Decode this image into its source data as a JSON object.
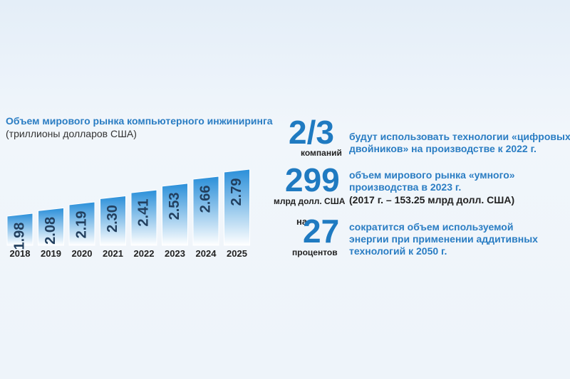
{
  "chart_data": {
    "type": "bar",
    "title": "Объем мирового рынка компьютерного инжиниринга",
    "subtitle": "(триллионы долларов США)",
    "categories": [
      "2018",
      "2019",
      "2020",
      "2021",
      "2022",
      "2023",
      "2024",
      "2025"
    ],
    "values": [
      1.98,
      2.08,
      2.19,
      2.3,
      2.41,
      2.53,
      2.66,
      2.79
    ],
    "value_labels": [
      "1.98",
      "2.08",
      "2.19",
      "2.30",
      "2.41",
      "2.53",
      "2.66",
      "2.79"
    ],
    "xlabel": "",
    "ylabel": "",
    "ylim": [
      0,
      2.8
    ],
    "grid": false,
    "bar_color_top": "#2a8fd9",
    "bar_color_bottom": "#ffffff"
  },
  "stats": [
    {
      "number": "2/3",
      "unit": "компаний",
      "desc_lines": [
        "будут использовать технологии «цифровых",
        "двойников» на производстве к 2022 г."
      ]
    },
    {
      "number": "299",
      "unit": "млрд долл. США",
      "desc_lines": [
        "объем мирового рынка «умного»",
        "производства в 2023 г."
      ],
      "note": "(2017 г. – 153.25 млрд долл. США)"
    },
    {
      "prefix": "на",
      "number": "27",
      "unit": "процентов",
      "desc_lines": [
        "сократится объем используемой",
        "энергии при применении аддитивных",
        "технологий к 2050 г."
      ]
    }
  ],
  "colors": {
    "accent": "#1f7ac1",
    "text": "#222222"
  }
}
